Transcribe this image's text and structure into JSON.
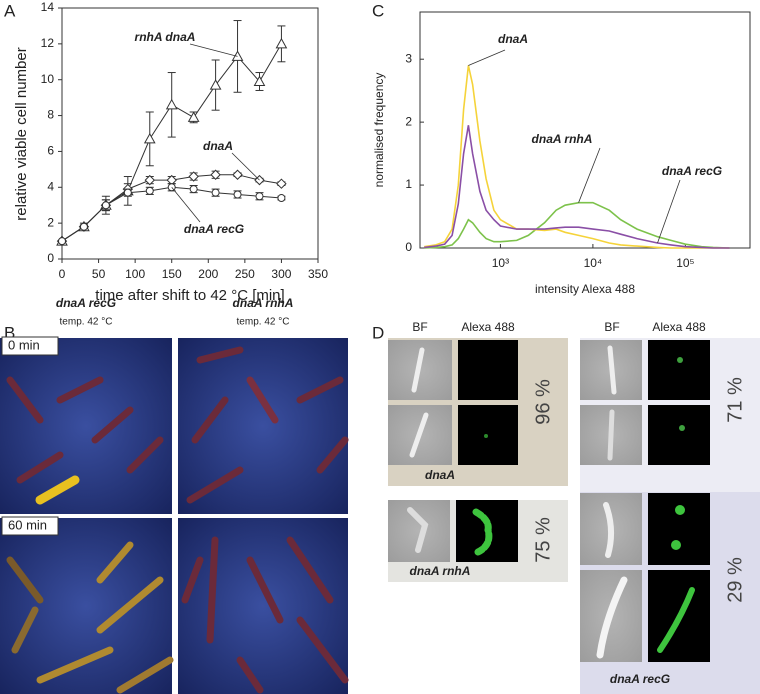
{
  "panel_labels": [
    "A",
    "B",
    "C",
    "D"
  ],
  "chart_data": [
    {
      "type": "line",
      "xlabel": "time after shift to 42 °C [min]",
      "ylabel": "relative viable cell number",
      "x": [
        0,
        30,
        60,
        90,
        120,
        150,
        180,
        210,
        240,
        270,
        300
      ],
      "xlim": [
        0,
        350
      ],
      "xticks": [
        0,
        50,
        100,
        150,
        200,
        250,
        300,
        350
      ],
      "ylim": [
        0,
        14
      ],
      "yticks": [
        0,
        2,
        4,
        6,
        8,
        10,
        12,
        14
      ],
      "series": [
        {
          "name": "rnhA dnaA",
          "color": "#333333",
          "marker": "triangle",
          "values": [
            1,
            1.8,
            3.0,
            3.8,
            6.7,
            8.6,
            7.9,
            9.7,
            11.3,
            9.9,
            12.0
          ],
          "errors": [
            0,
            0.2,
            0.5,
            0.8,
            1.5,
            1.8,
            0.3,
            1.4,
            2.0,
            0.5,
            1.0
          ]
        },
        {
          "name": "dnaA",
          "color": "#333333",
          "marker": "diamond",
          "values": [
            1,
            1.8,
            3.0,
            3.9,
            4.4,
            4.4,
            4.6,
            4.7,
            4.7,
            4.4,
            4.2
          ],
          "errors": [
            0,
            0.1,
            0.3,
            0.3,
            0.2,
            0.2,
            0.2,
            0.2,
            0.1,
            0.1,
            0.1
          ]
        },
        {
          "name": "dnaA recG",
          "color": "#333333",
          "marker": "circle",
          "values": [
            1,
            1.8,
            3.0,
            3.7,
            3.8,
            4.0,
            3.9,
            3.7,
            3.6,
            3.5,
            3.4
          ],
          "errors": [
            0,
            0.1,
            0.3,
            0.2,
            0.2,
            0.2,
            0.2,
            0.2,
            0.2,
            0.2,
            0.1
          ]
        }
      ]
    },
    {
      "type": "line",
      "xlabel": "intensity Alexa 488",
      "ylabel": "normalised frequency",
      "xscale": "log",
      "x": [
        150,
        200,
        250,
        300,
        350,
        400,
        450,
        500,
        600,
        700,
        850,
        1000,
        1500,
        2000,
        3000,
        4000,
        5000,
        7000,
        10000,
        15000,
        20000,
        30000,
        50000,
        70000,
        100000,
        150000,
        200000,
        300000
      ],
      "xlim": [
        135,
        500000
      ],
      "xticks": [
        {
          "value": 1000,
          "label": "10³"
        },
        {
          "value": 10000,
          "label": "10⁴"
        },
        {
          "value": 100000,
          "label": "10⁵"
        }
      ],
      "ylim": [
        0,
        3.75
      ],
      "yticks": [
        0,
        1,
        2,
        3
      ],
      "series": [
        {
          "name": "dnaA rnhA",
          "color": "#7dc24b",
          "values": [
            0,
            0.01,
            0.02,
            0.05,
            0.15,
            0.3,
            0.45,
            0.4,
            0.25,
            0.15,
            0.1,
            0.1,
            0.12,
            0.2,
            0.4,
            0.6,
            0.68,
            0.72,
            0.72,
            0.6,
            0.45,
            0.3,
            0.18,
            0.12,
            0.06,
            0.02,
            0.01,
            0
          ]
        },
        {
          "name": "dnaA",
          "color": "#f5d33a",
          "values": [
            0.02,
            0.05,
            0.1,
            0.3,
            1.0,
            2.2,
            2.9,
            2.6,
            1.7,
            1.1,
            0.6,
            0.45,
            0.3,
            0.3,
            0.28,
            0.3,
            0.25,
            0.2,
            0.15,
            0.08,
            0.05,
            0.03,
            0.01,
            0,
            0,
            0,
            0,
            0
          ]
        },
        {
          "name": "dnaA recG",
          "color": "#8a4fa6",
          "values": [
            0.01,
            0.03,
            0.06,
            0.2,
            0.7,
            1.5,
            1.95,
            1.5,
            0.9,
            0.6,
            0.45,
            0.35,
            0.3,
            0.3,
            0.3,
            0.32,
            0.33,
            0.33,
            0.3,
            0.27,
            0.22,
            0.15,
            0.08,
            0.05,
            0.02,
            0.01,
            0,
            0
          ]
        }
      ]
    }
  ],
  "panel_b": {
    "columns": [
      {
        "strain": "dnaA recG",
        "condition": "temp. 42 °C"
      },
      {
        "strain": "dnaA rnhA",
        "condition": "temp. 42 °C"
      }
    ],
    "rows": [
      "0 min",
      "60 min"
    ]
  },
  "panel_d": {
    "column_headers": [
      "BF",
      "Alexa 488",
      "BF",
      "Alexa 488"
    ],
    "groups": [
      {
        "percent": "96 %",
        "strain": "dnaA"
      },
      {
        "percent": "75 %",
        "strain": "dnaA rnhA"
      },
      {
        "percent": "71 %"
      },
      {
        "percent": "29 %",
        "strain": "dnaA recG"
      }
    ]
  }
}
